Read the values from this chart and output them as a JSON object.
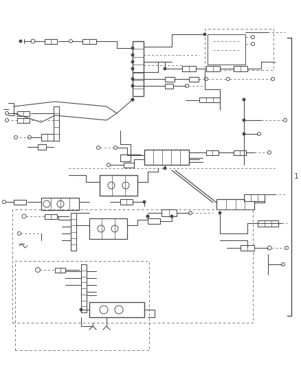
{
  "fig_width": 4.38,
  "fig_height": 5.33,
  "dpi": 100,
  "bg_color": "#ffffff",
  "lc": "#4a4a4a",
  "dc": "#7a7a7a",
  "border_label": "1"
}
